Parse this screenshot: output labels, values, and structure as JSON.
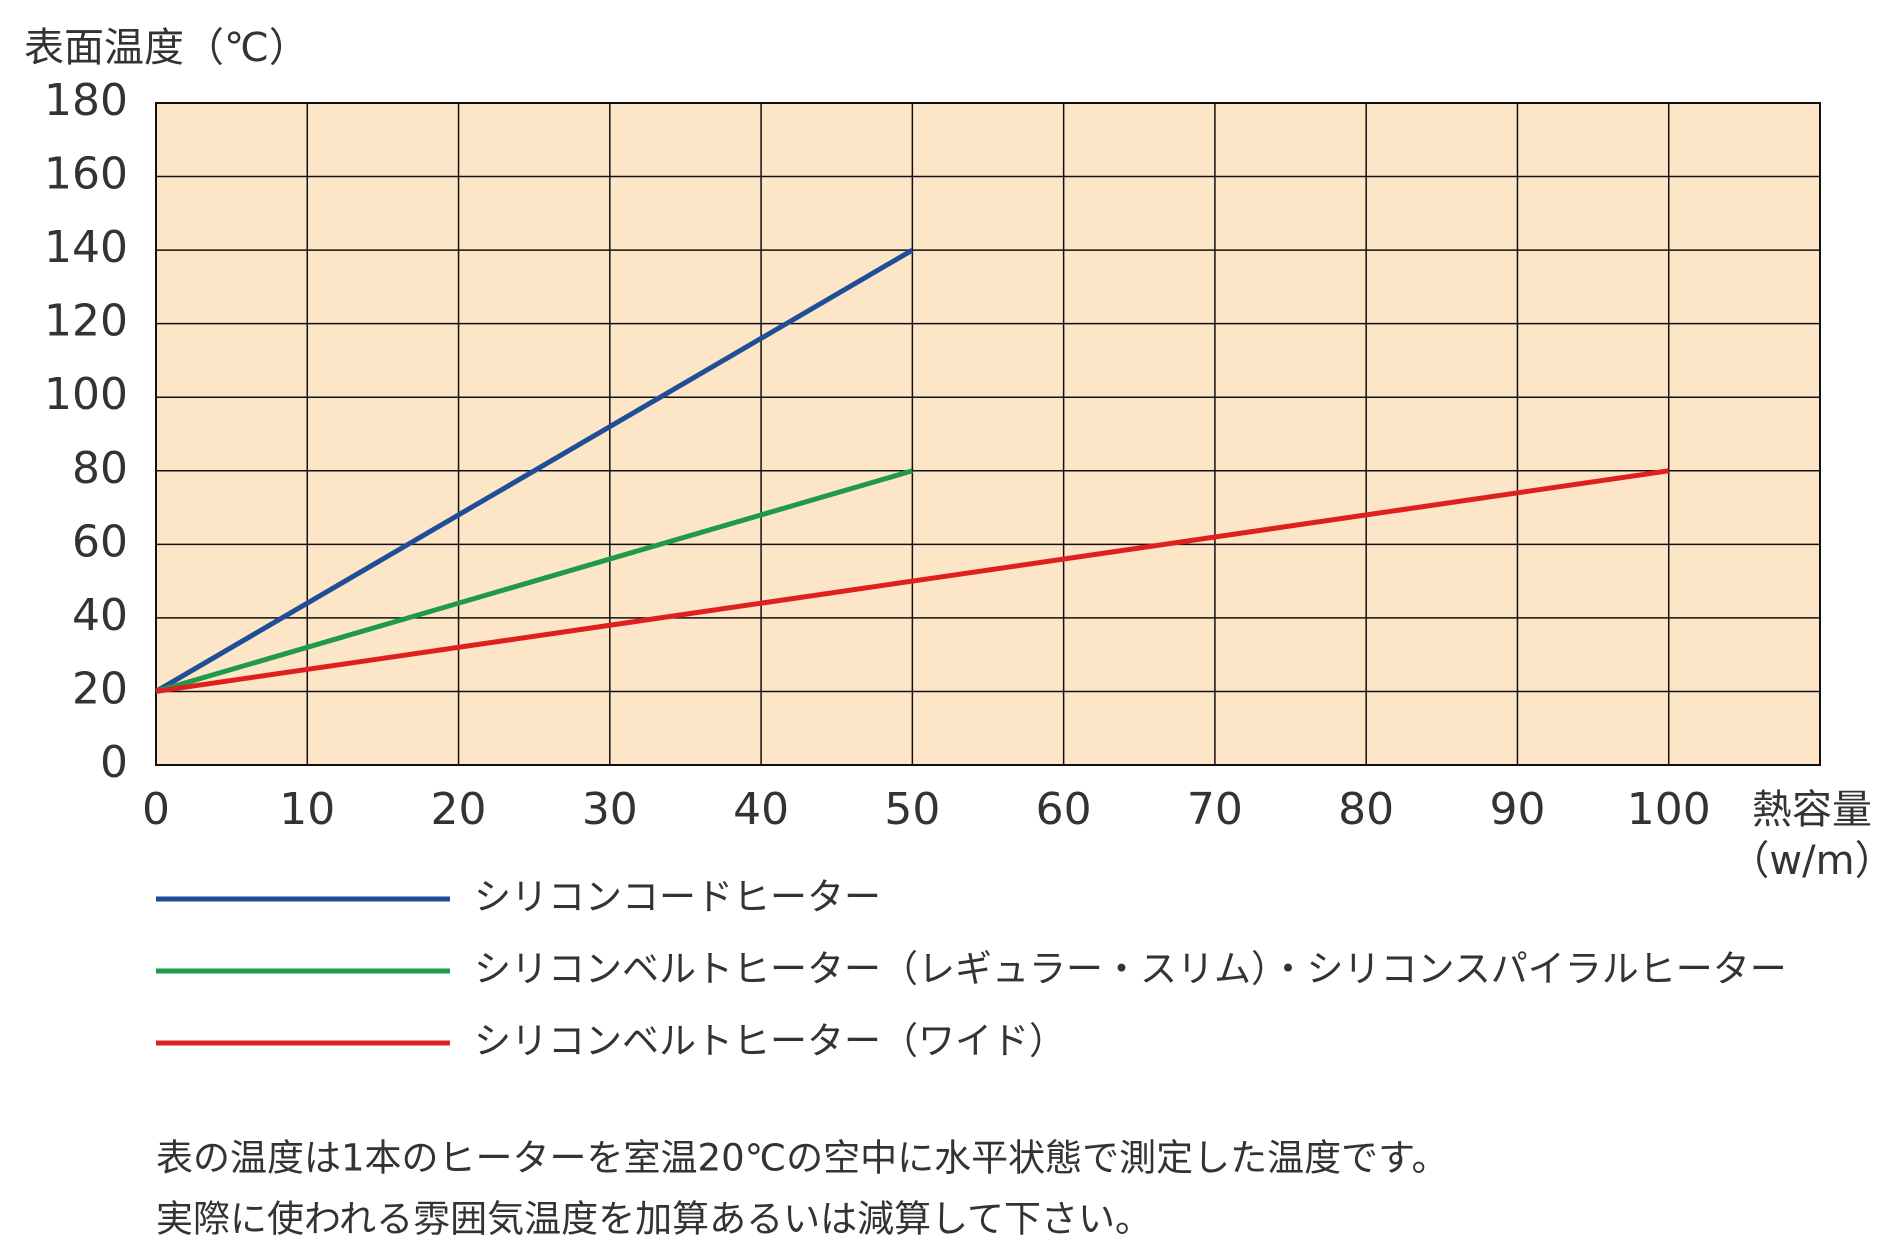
{
  "chart_data": {
    "type": "line",
    "ylabel": "表面温度（℃）",
    "xlabel": "熱容量",
    "xunit": "（w/m）",
    "xlim": [
      0,
      110
    ],
    "xticks": [
      0,
      10,
      20,
      30,
      40,
      50,
      60,
      70,
      80,
      90,
      100
    ],
    "ylim": [
      0,
      180
    ],
    "yticks": [
      0,
      20,
      40,
      60,
      80,
      100,
      120,
      140,
      160,
      180
    ],
    "grid": true,
    "background": "#fde5c8",
    "series": [
      {
        "name": "シリコンコードヒーター",
        "color": "#1f4e96",
        "x": [
          0,
          50
        ],
        "values": [
          20,
          140
        ]
      },
      {
        "name": "シリコンベルトヒーター（レギュラー・スリム）・シリコンスパイラルヒーター",
        "color": "#1e9a48",
        "x": [
          0,
          50
        ],
        "values": [
          20,
          80
        ]
      },
      {
        "name": "シリコンベルトヒーター（ワイド）",
        "color": "#e0201f",
        "x": [
          0,
          100
        ],
        "values": [
          20,
          80
        ]
      }
    ],
    "notes": [
      "表の温度は1本のヒーターを室温20℃の空中に水平状態で測定した温度です。",
      "実際に使われる雰囲気温度を加算あるいは減算して下さい。"
    ]
  }
}
